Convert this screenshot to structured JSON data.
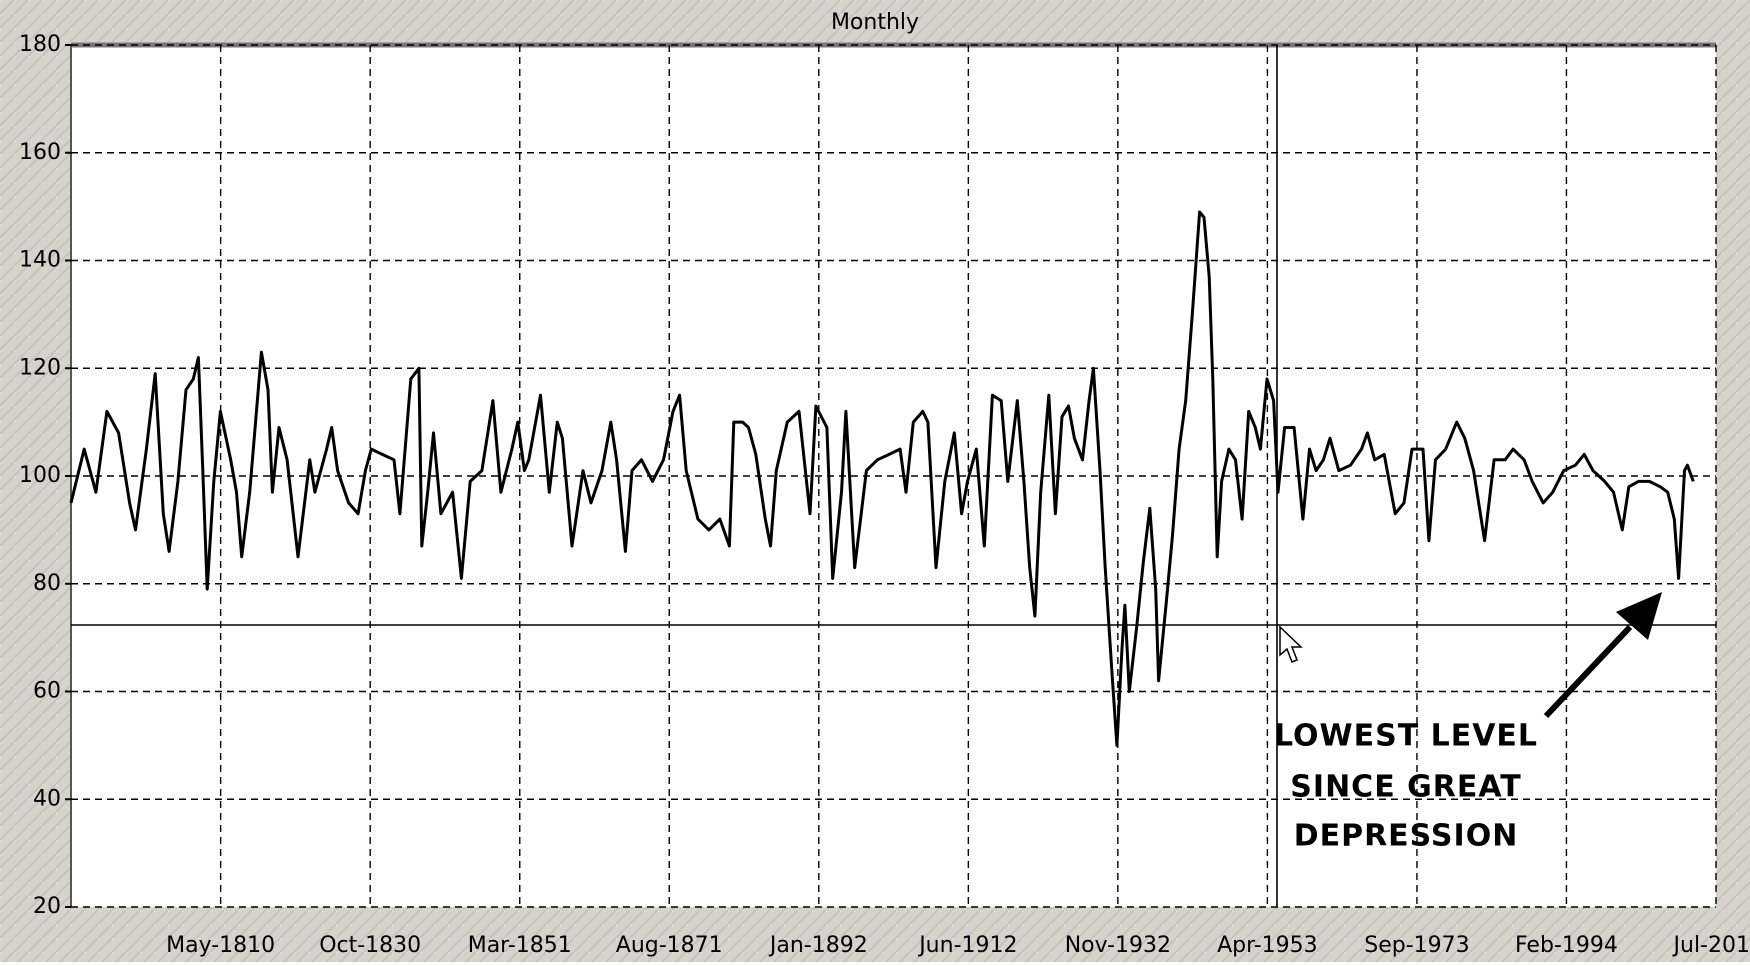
{
  "chart_data": {
    "type": "line",
    "title": "Monthly",
    "color": "#000000",
    "x": [
      1789.9,
      1791.7,
      1793.3,
      1794.8,
      1796.4,
      1797.9,
      1798.7,
      1800.2,
      1801.4,
      1802.5,
      1803.3,
      1804.5,
      1805.6,
      1806.6,
      1807.3,
      1807.9,
      1808.5,
      1809.4,
      1810.3,
      1811.7,
      1812.5,
      1813.2,
      1814.3,
      1815.9,
      1816.8,
      1817.4,
      1818.3,
      1819.4,
      1820.9,
      1822.5,
      1823.2,
      1824.8,
      1825.5,
      1826.3,
      1827.8,
      1829.1,
      1830.1,
      1830.9,
      1832.4,
      1834.0,
      1834.8,
      1836.3,
      1837.4,
      1837.8,
      1838.6,
      1839.4,
      1840.4,
      1842.0,
      1843.2,
      1844.4,
      1846.0,
      1847.5,
      1848.6,
      1850.1,
      1850.9,
      1851.8,
      1852.4,
      1854.0,
      1855.2,
      1856.3,
      1857.0,
      1858.3,
      1859.8,
      1860.9,
      1862.4,
      1863.6,
      1864.4,
      1865.6,
      1866.5,
      1867.8,
      1869.3,
      1870.8,
      1872.1,
      1873.0,
      1873.9,
      1875.5,
      1877.0,
      1878.5,
      1879.8,
      1880.4,
      1881.6,
      1882.4,
      1883.4,
      1884.7,
      1885.4,
      1886.2,
      1887.7,
      1889.3,
      1890.8,
      1891.6,
      1893.1,
      1893.9,
      1895.1,
      1895.7,
      1896.9,
      1898.5,
      1900.0,
      1901.6,
      1903.1,
      1903.9,
      1904.9,
      1906.2,
      1906.9,
      1908.0,
      1909.2,
      1910.5,
      1911.5,
      1912.3,
      1913.5,
      1914.6,
      1915.7,
      1916.9,
      1917.8,
      1919.1,
      1920.0,
      1920.8,
      1921.5,
      1922.3,
      1923.4,
      1924.3,
      1925.2,
      1926.1,
      1926.9,
      1928.0,
      1928.9,
      1929.5,
      1930.4,
      1931.1,
      1932.0,
      1932.7,
      1933.4,
      1933.8,
      1934.4,
      1935.4,
      1936.3,
      1937.2,
      1938.0,
      1938.4,
      1939.4,
      1940.3,
      1941.2,
      1942.1,
      1943.0,
      1944.0,
      1944.6,
      1945.3,
      1945.8,
      1946.4,
      1947.0,
      1948.0,
      1948.9,
      1949.8,
      1950.7,
      1951.6,
      1952.3,
      1953.2,
      1954.1,
      1954.7,
      1955.6,
      1956.9,
      1958.1,
      1959.0,
      1959.9,
      1960.9,
      1961.8,
      1963.0,
      1964.6,
      1966.1,
      1966.9,
      1967.9,
      1969.2,
      1970.7,
      1971.9,
      1973.0,
      1974.5,
      1975.3,
      1976.2,
      1977.6,
      1979.1,
      1980.2,
      1981.4,
      1982.9,
      1984.2,
      1985.7,
      1986.8,
      1988.3,
      1989.4,
      1990.9,
      1992.2,
      1993.7,
      1995.3,
      1996.5,
      1997.7,
      1999.3,
      2000.5,
      2001.7,
      2002.6,
      2003.9,
      2005.4,
      2006.9,
      2007.9,
      2008.8,
      2009.4,
      2010.2,
      2010.6,
      2011.4
    ],
    "values": [
      95,
      105,
      97,
      112,
      108,
      95,
      90,
      105,
      119,
      93,
      86,
      99,
      116,
      118,
      122,
      101,
      79,
      99,
      112,
      103,
      97,
      85,
      97,
      123,
      116,
      97,
      109,
      103,
      85,
      103,
      97,
      105,
      109,
      101,
      95,
      93,
      101,
      105,
      104,
      103,
      93,
      118,
      120,
      87,
      97,
      108,
      93,
      97,
      81,
      99,
      101,
      114,
      97,
      105,
      110,
      101,
      103,
      115,
      97,
      110,
      107,
      87,
      101,
      95,
      101,
      110,
      103,
      86,
      101,
      103,
      99,
      103,
      112,
      115,
      101,
      92,
      90,
      92,
      87,
      110,
      110,
      109,
      104,
      92,
      87,
      101,
      110,
      112,
      93,
      113,
      109,
      81,
      97,
      112,
      83,
      101,
      103,
      104,
      105,
      97,
      110,
      112,
      110,
      83,
      99,
      108,
      93,
      99,
      105,
      87,
      115,
      114,
      99,
      114,
      99,
      83,
      74,
      97,
      115,
      93,
      111,
      113,
      107,
      103,
      114,
      120,
      101,
      83,
      64,
      50,
      68,
      76,
      60,
      72,
      84,
      94,
      79,
      62,
      76,
      89,
      105,
      114,
      130,
      149,
      148,
      137,
      118,
      85,
      99,
      105,
      103,
      92,
      112,
      109,
      105,
      118,
      114,
      97,
      109,
      109,
      92,
      105,
      101,
      103,
      107,
      101,
      102,
      105,
      108,
      103,
      104,
      93,
      95,
      105,
      105,
      88,
      103,
      105,
      110,
      107,
      101,
      88,
      103,
      103,
      105,
      103,
      99,
      95,
      97,
      101,
      102,
      104,
      101,
      99,
      97,
      90,
      98,
      99,
      99,
      98,
      97,
      92,
      81,
      101,
      102,
      99
    ],
    "xlim": [
      1789.9,
      2014.5
    ],
    "xticks": [
      {
        "value": 1810.33,
        "label": "May-1810"
      },
      {
        "value": 1830.75,
        "label": "Oct-1830"
      },
      {
        "value": 1851.17,
        "label": "Mar-1851"
      },
      {
        "value": 1871.58,
        "label": "Aug-1871"
      },
      {
        "value": 1892.0,
        "label": "Jan-1892"
      },
      {
        "value": 1912.42,
        "label": "Jun-1912"
      },
      {
        "value": 1932.83,
        "label": "Nov-1932"
      },
      {
        "value": 1953.25,
        "label": "Apr-1953"
      },
      {
        "value": 1973.67,
        "label": "Sep-1973"
      },
      {
        "value": 1994.08,
        "label": "Feb-1994"
      },
      {
        "value": 2014.5,
        "label": "Jul-201"
      }
    ],
    "ylim": [
      20,
      180
    ],
    "yticks": [
      20,
      40,
      60,
      80,
      100,
      120,
      140,
      160,
      180
    ],
    "grid": true,
    "annotation": [
      "LOWEST LEVEL",
      "SINCE GREAT",
      "DEPRESSION"
    ]
  }
}
